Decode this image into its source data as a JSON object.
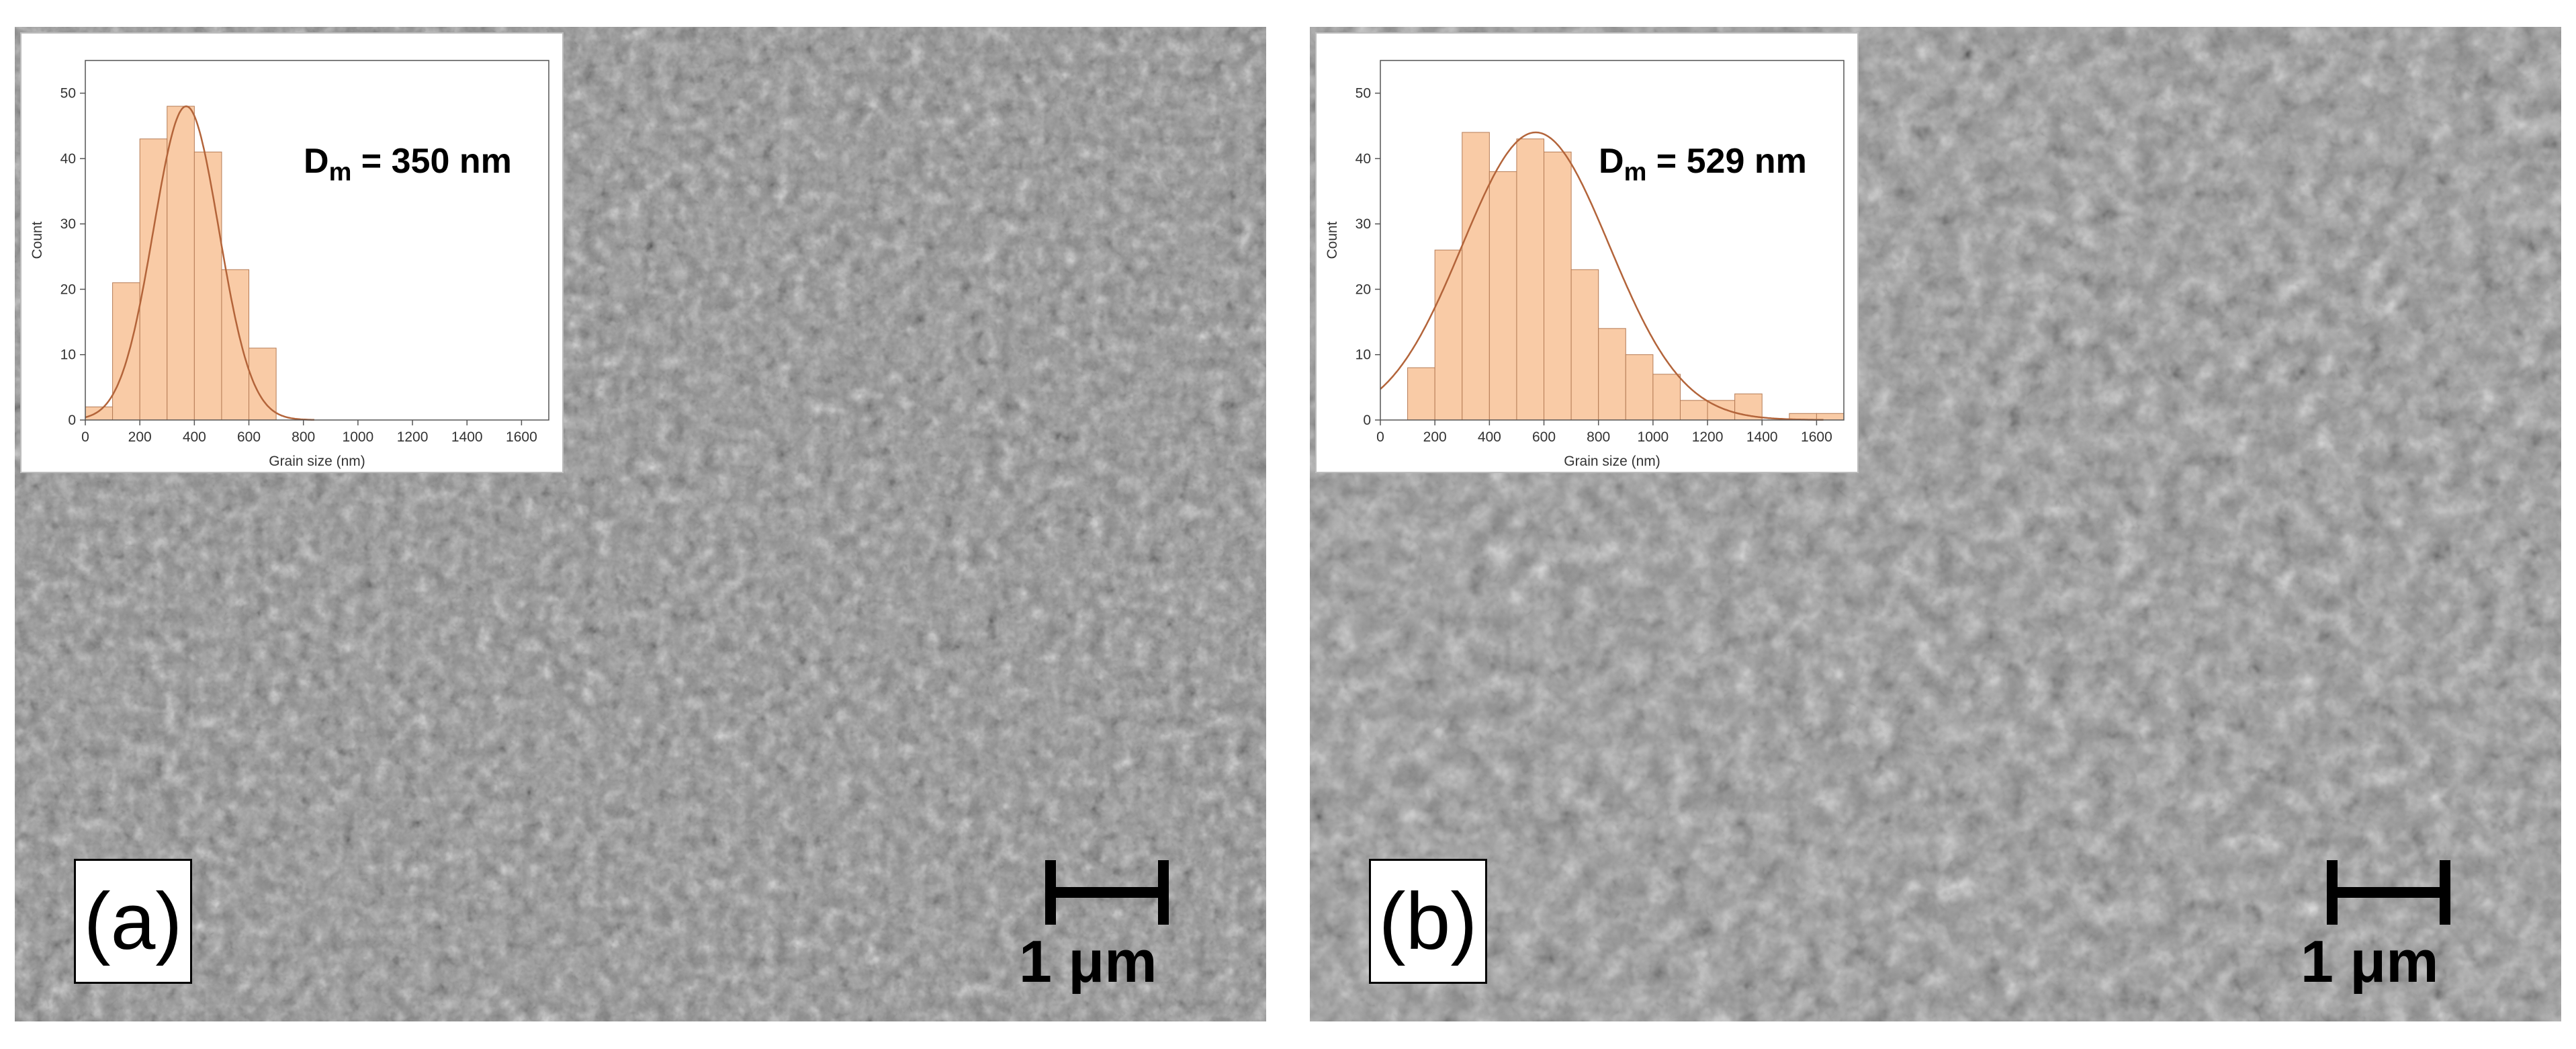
{
  "panels": [
    {
      "id": "a",
      "panel_label": "(a)",
      "dm_main": "D",
      "dm_sub": "m",
      "dm_rest": " = 350 nm",
      "scale_text": "1 μm"
    },
    {
      "id": "b",
      "panel_label": "(b)",
      "dm_main": "D",
      "dm_sub": "m",
      "dm_rest": " = 529 nm",
      "scale_text": "1 μm"
    }
  ],
  "chart_data": [
    {
      "type": "bar",
      "subtype": "histogram",
      "bin_width": 100,
      "bin_starts": [
        0,
        100,
        200,
        300,
        400,
        500,
        600
      ],
      "values": [
        2,
        21,
        43,
        48,
        41,
        23,
        11
      ],
      "fit": {
        "type": "gaussian",
        "mean": 370,
        "sigma": 120,
        "peak": 48
      },
      "xlabel": "Grain size (nm)",
      "ylabel": "Count",
      "xlim": [
        0,
        1700
      ],
      "ylim": [
        0,
        55
      ],
      "xticks": [
        0,
        200,
        400,
        600,
        800,
        1000,
        1200,
        1400,
        1600
      ],
      "yticks": [
        0,
        10,
        20,
        30,
        40,
        50
      ],
      "bar_color": "#f9cba6",
      "bar_edge": "#b57b55",
      "fit_color": "#b3643a"
    },
    {
      "type": "bar",
      "subtype": "histogram",
      "bin_width": 100,
      "bin_starts": [
        100,
        200,
        300,
        400,
        500,
        600,
        700,
        800,
        900,
        1000,
        1100,
        1200,
        1300,
        1400,
        1500,
        1600
      ],
      "values": [
        8,
        26,
        44,
        38,
        43,
        41,
        23,
        14,
        10,
        7,
        3,
        3,
        4,
        0,
        1,
        1
      ],
      "fit": {
        "type": "gaussian",
        "mean": 570,
        "sigma": 270,
        "peak": 44
      },
      "xlabel": "Grain size (nm)",
      "ylabel": "Count",
      "xlim": [
        0,
        1700
      ],
      "ylim": [
        0,
        55
      ],
      "xticks": [
        0,
        200,
        400,
        600,
        800,
        1000,
        1200,
        1400,
        1600
      ],
      "yticks": [
        0,
        10,
        20,
        30,
        40,
        50
      ],
      "bar_color": "#f9cba6",
      "bar_edge": "#b57b55",
      "fit_color": "#b3643a"
    }
  ]
}
